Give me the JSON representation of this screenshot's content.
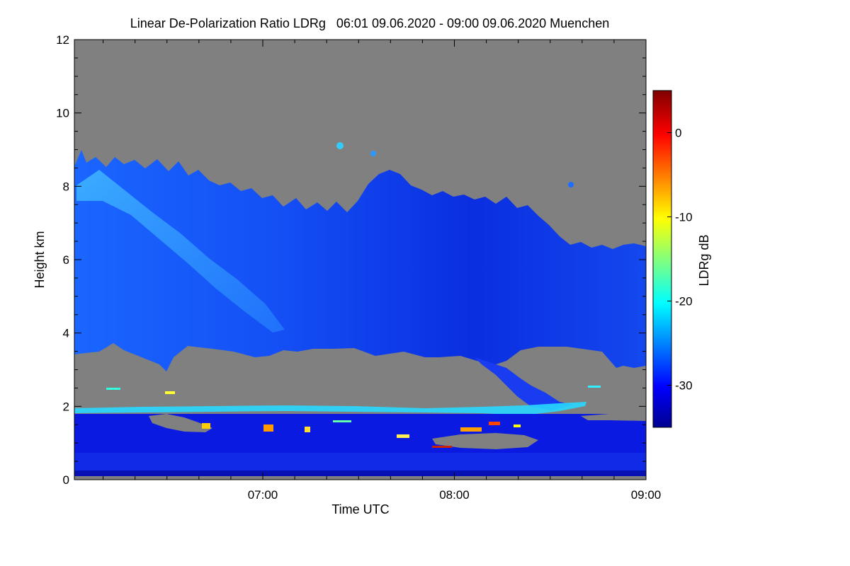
{
  "chart_data": {
    "type": "heatmap",
    "title": "Linear De-Polarization Ratio LDRg   06:01 09.06.2020 - 09:00 09.06.2020 Muenchen",
    "xlabel": "Time UTC",
    "ylabel": "Height km",
    "xlim": [
      "06:01",
      "09:00"
    ],
    "ylim": [
      0,
      12
    ],
    "x_ticks": [
      "07:00",
      "08:00",
      "09:00"
    ],
    "y_ticks": [
      0,
      2,
      4,
      6,
      8,
      10,
      12
    ],
    "colorbar": {
      "label": "LDRg dB",
      "range": [
        -35,
        5
      ],
      "ticks": [
        0,
        -10,
        -20,
        -30
      ],
      "colormap": "jet"
    },
    "missing_color": "#808080",
    "features": [
      {
        "layer": "cirrus",
        "time": [
          "06:01",
          "09:00"
        ],
        "base_km": [
          3.5,
          3.0
        ],
        "top_km": [
          8.5,
          6.3
        ],
        "ldr_db": -30
      },
      {
        "layer": "fall-streak",
        "time": [
          "06:05",
          "06:58"
        ],
        "top_km": 8.3,
        "base_km": 4.9,
        "ldr_db": -22
      },
      {
        "layer": "thin-liquid-layer",
        "time": [
          "06:01",
          "08:44"
        ],
        "height_km": [
          1.85,
          2.15
        ],
        "ldr_db": -22
      },
      {
        "layer": "boundary-layer-aerosol",
        "time": [
          "06:01",
          "09:00"
        ],
        "base_km": 0.05,
        "top_km": 1.8,
        "ldr_db": -32
      }
    ]
  }
}
